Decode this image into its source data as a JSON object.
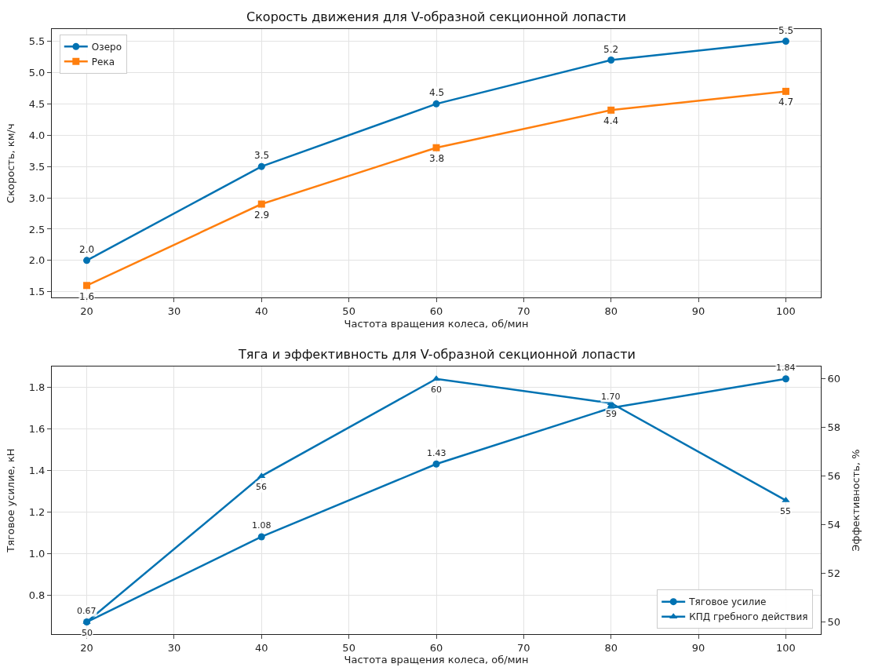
{
  "chart_data": [
    {
      "type": "line",
      "title": "Скорость движения для V-образной секционной лопасти",
      "xlabel": "Частота вращения колеса, об/мин",
      "ylabel": "Скорость, км/ч",
      "x": [
        20,
        40,
        60,
        80,
        100
      ],
      "xlim": [
        16,
        104
      ],
      "xticks": [
        20,
        30,
        40,
        50,
        60,
        70,
        80,
        90,
        100
      ],
      "ylim": [
        1.405,
        5.695
      ],
      "yticks": [
        {
          "value": 1.5,
          "label": "1.5"
        },
        {
          "value": 2,
          "label": "2.0"
        },
        {
          "value": 2.5,
          "label": "2.5"
        },
        {
          "value": 3,
          "label": "3.0"
        },
        {
          "value": 3.5,
          "label": "3.5"
        },
        {
          "value": 4,
          "label": "4.0"
        },
        {
          "value": 4.5,
          "label": "4.5"
        },
        {
          "value": 5,
          "label": "5.0"
        },
        {
          "value": 5.5,
          "label": "5.5"
        }
      ],
      "grid": true,
      "legend": "top left",
      "series": [
        {
          "name": "Озеро",
          "color": "#0072b2",
          "marker": "circle",
          "values": [
            2.0,
            3.5,
            4.5,
            5.2,
            5.5
          ],
          "value_labels": [
            "2.0",
            "3.5",
            "4.5",
            "5.2",
            "5.5"
          ]
        },
        {
          "name": "Река",
          "color": "#ff7f0e",
          "marker": "square",
          "values": [
            1.6,
            2.9,
            3.8,
            4.4,
            4.7
          ],
          "value_labels": [
            "1.6",
            "2.9",
            "3.8",
            "4.4",
            "4.7"
          ]
        }
      ]
    },
    {
      "type": "line",
      "title": "Тяга и эффективность для V-образной секционной лопасти",
      "xlabel": "Частота вращения колеса, об/мин",
      "ylabel": "Тяговое усилие, кН",
      "y2label": "Эффективность, %",
      "x": [
        20,
        40,
        60,
        80,
        100
      ],
      "xlim": [
        16,
        104
      ],
      "xticks": [
        20,
        30,
        40,
        50,
        60,
        70,
        80,
        90,
        100
      ],
      "ylim": [
        0.6115,
        1.8985
      ],
      "yticks": [
        {
          "value": 0.8,
          "label": "0.8"
        },
        {
          "value": 1,
          "label": "1.0"
        },
        {
          "value": 1.2,
          "label": "1.2"
        },
        {
          "value": 1.4,
          "label": "1.4"
        },
        {
          "value": 1.6,
          "label": "1.6"
        },
        {
          "value": 1.8,
          "label": "1.8"
        }
      ],
      "y2lim": [
        49.5,
        60.5
      ],
      "y2ticks": [
        50,
        52,
        54,
        56,
        58,
        60
      ],
      "grid": true,
      "legend": "bottom right",
      "series": [
        {
          "name": "Тяговое усилие",
          "color": "#0072b2",
          "marker": "circle",
          "values": [
            0.67,
            1.08,
            1.43,
            1.7,
            1.84
          ],
          "value_labels": [
            "0.67",
            "1.08",
            "1.43",
            "1.70",
            "1.84"
          ]
        },
        {
          "name": "КПД гребного действия",
          "color": "#0072b2",
          "marker": "triangle",
          "axis": "y2",
          "values": [
            50,
            56,
            60,
            59,
            55
          ],
          "value_labels": [
            "50",
            "56",
            "60",
            "59",
            "55"
          ]
        }
      ]
    }
  ]
}
